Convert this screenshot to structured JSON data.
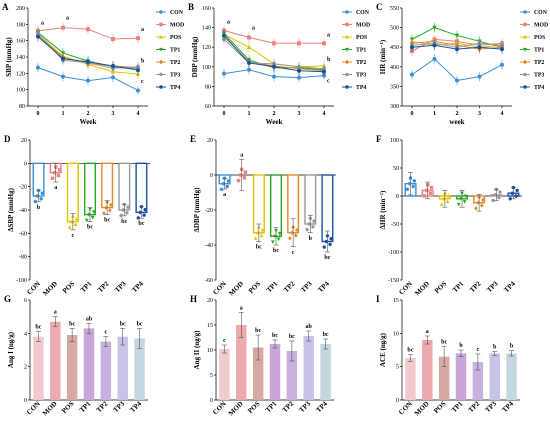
{
  "chart_data": [
    {
      "id": "A",
      "type": "line",
      "panel_label": "A",
      "ylabel": "SBP (mmHg)",
      "xlabel": "Week",
      "ylim": [
        80,
        200
      ],
      "yticks": [
        80,
        100,
        120,
        140,
        160,
        180,
        200
      ],
      "x": [
        0,
        1,
        2,
        3,
        4
      ],
      "series": [
        {
          "name": "CON",
          "color": "#3a8fd9",
          "marker": "circle",
          "values": [
            127,
            116,
            111,
            115,
            99
          ]
        },
        {
          "name": "MOD",
          "color": "#f08080",
          "marker": "square",
          "values": [
            172,
            176,
            174,
            162,
            163
          ]
        },
        {
          "name": "POS",
          "color": "#e5c200",
          "marker": "triangle",
          "values": [
            168,
            141,
            131,
            122,
            119
          ]
        },
        {
          "name": "TP1",
          "color": "#22aa22",
          "marker": "triangle-down",
          "values": [
            170,
            145,
            135,
            128,
            126
          ]
        },
        {
          "name": "TP2",
          "color": "#e08a2c",
          "marker": "diamond",
          "values": [
            166,
            140,
            132,
            129,
            127
          ]
        },
        {
          "name": "TP3",
          "color": "#9a9a9a",
          "marker": "circle",
          "values": [
            169,
            136,
            133,
            126,
            128
          ]
        },
        {
          "name": "TP4",
          "color": "#1a4fa0",
          "marker": "circle",
          "values": [
            165,
            138,
            134,
            129,
            124
          ]
        }
      ],
      "annotations": [
        {
          "x": 0,
          "y": 180,
          "text": "a"
        },
        {
          "x": 1,
          "y": 186,
          "text": "a"
        },
        {
          "x": 4,
          "y": 172,
          "text": "a"
        },
        {
          "x": 4,
          "y": 133,
          "text": "b"
        },
        {
          "x": 4,
          "y": 108,
          "text": "c"
        }
      ]
    },
    {
      "id": "B",
      "type": "line",
      "panel_label": "B",
      "ylabel": "DBP (mmHg)",
      "xlabel": "Week",
      "ylim": [
        60,
        160
      ],
      "yticks": [
        60,
        80,
        100,
        120,
        140,
        160
      ],
      "x": [
        0,
        1,
        2,
        3,
        4
      ],
      "series": [
        {
          "name": "CON",
          "color": "#3a8fd9",
          "marker": "circle",
          "values": [
            93,
            97,
            90,
            89,
            91
          ]
        },
        {
          "name": "MOD",
          "color": "#f08080",
          "marker": "square",
          "values": [
            137,
            130,
            124,
            124,
            124
          ]
        },
        {
          "name": "POS",
          "color": "#e5c200",
          "marker": "triangle",
          "values": [
            133,
            120,
            103,
            100,
            101
          ]
        },
        {
          "name": "TP1",
          "color": "#22aa22",
          "marker": "triangle-down",
          "values": [
            134,
            107,
            99,
            99,
            97
          ]
        },
        {
          "name": "TP2",
          "color": "#e08a2c",
          "marker": "diamond",
          "values": [
            131,
            105,
            101,
            98,
            96
          ]
        },
        {
          "name": "TP3",
          "color": "#9a9a9a",
          "marker": "circle",
          "values": [
            128,
            104,
            103,
            100,
            98
          ]
        },
        {
          "name": "TP4",
          "color": "#1a4fa0",
          "marker": "circle",
          "values": [
            132,
            104,
            100,
            96,
            95
          ]
        }
      ],
      "annotations": [
        {
          "x": 0,
          "y": 144,
          "text": "a"
        },
        {
          "x": 1,
          "y": 138,
          "text": "a"
        },
        {
          "x": 4,
          "y": 131,
          "text": "a"
        },
        {
          "x": 4,
          "y": 106,
          "text": "b"
        },
        {
          "x": 4,
          "y": 84,
          "text": "c"
        }
      ]
    },
    {
      "id": "C",
      "type": "line",
      "panel_label": "C",
      "ylabel": "HR (min⁻¹)",
      "xlabel": "week",
      "ylim": [
        300,
        550
      ],
      "yticks": [
        300,
        350,
        400,
        450,
        500,
        550
      ],
      "x": [
        0,
        1,
        2,
        3,
        4
      ],
      "series": [
        {
          "name": "CON",
          "color": "#3a8fd9",
          "marker": "circle",
          "values": [
            380,
            420,
            365,
            375,
            405
          ]
        },
        {
          "name": "MOD",
          "color": "#f08080",
          "marker": "square",
          "values": [
            440,
            470,
            465,
            455,
            460
          ]
        },
        {
          "name": "POS",
          "color": "#e5c200",
          "marker": "triangle",
          "values": [
            465,
            455,
            460,
            450,
            455
          ]
        },
        {
          "name": "TP1",
          "color": "#22aa22",
          "marker": "triangle-down",
          "values": [
            470,
            500,
            480,
            465,
            450
          ]
        },
        {
          "name": "TP2",
          "color": "#e08a2c",
          "marker": "diamond",
          "values": [
            460,
            465,
            455,
            445,
            450
          ]
        },
        {
          "name": "TP3",
          "color": "#9a9a9a",
          "marker": "circle",
          "values": [
            455,
            460,
            450,
            460,
            455
          ]
        },
        {
          "name": "TP4",
          "color": "#1a4fa0",
          "marker": "circle",
          "values": [
            450,
            455,
            445,
            450,
            445
          ]
        }
      ],
      "annotations": []
    },
    {
      "id": "D",
      "type": "bar",
      "panel_label": "D",
      "ylabel": "ΔSBP (mmHg)",
      "ylim": [
        -100,
        20
      ],
      "yticks": [
        -100,
        -80,
        -60,
        -40,
        -20,
        0,
        20
      ],
      "categories": [
        "CON",
        "MOD",
        "POS",
        "TP1",
        "TP2",
        "TP3",
        "TP4"
      ],
      "colors": [
        "#3a8fd9",
        "#f08080",
        "#e5c200",
        "#22aa22",
        "#e08a2c",
        "#9a9a9a",
        "#1a4fa0"
      ],
      "values": [
        -28,
        -8,
        -50,
        -44,
        -38,
        -40,
        -42
      ],
      "errors": [
        5,
        8,
        7,
        6,
        6,
        5,
        5
      ],
      "labels": [
        "b",
        "a",
        "c",
        "bc",
        "bc",
        "bc",
        "bc"
      ]
    },
    {
      "id": "E",
      "type": "bar",
      "panel_label": "E",
      "ylabel": "ΔDBP (mmHg)",
      "ylim": [
        -60,
        20
      ],
      "yticks": [
        -60,
        -40,
        -20,
        0,
        20
      ],
      "categories": [
        "CON",
        "MOD",
        "POS",
        "TP1",
        "TP2",
        "TP3",
        "TP4"
      ],
      "colors": [
        "#3a8fd9",
        "#f08080",
        "#e5c200",
        "#22aa22",
        "#e08a2c",
        "#9a9a9a",
        "#1a4fa0"
      ],
      "values": [
        -5,
        0,
        -33,
        -35,
        -33,
        -28,
        -38
      ],
      "errors": [
        3,
        9,
        5,
        5,
        8,
        5,
        6
      ],
      "labels": [
        "a",
        "a",
        "bc",
        "bc",
        "c",
        "b",
        "bc"
      ]
    },
    {
      "id": "F",
      "type": "bar",
      "panel_label": "F",
      "ylabel": "ΔHR (min⁻¹)",
      "ylim": [
        -150,
        100
      ],
      "yticks": [
        -150,
        -100,
        -50,
        0,
        50,
        100
      ],
      "categories": [
        "CON",
        "MOD",
        "POS",
        "TP1",
        "TP2",
        "TP3",
        "TP4"
      ],
      "colors": [
        "#3a8fd9",
        "#f08080",
        "#e5c200",
        "#22aa22",
        "#e08a2c",
        "#9a9a9a",
        "#1a4fa0"
      ],
      "values": [
        22,
        10,
        -5,
        -5,
        -12,
        2,
        5
      ],
      "errors": [
        20,
        15,
        15,
        15,
        15,
        10,
        10
      ],
      "labels": []
    },
    {
      "id": "G",
      "type": "bar",
      "panel_label": "G",
      "ylabel": "Ang I (ng/g)",
      "ylim": [
        0,
        6
      ],
      "yticks": [
        0,
        2,
        4,
        6
      ],
      "categories": [
        "CON",
        "MOD",
        "POS",
        "TP1",
        "TP2",
        "TP3",
        "TP4"
      ],
      "colors": [
        "#f2c9cc",
        "#eda9b0",
        "#d7a8a4",
        "#c9a6d9",
        "#c8b0df",
        "#c9c3e8",
        "#c4d6df"
      ],
      "values": [
        3.8,
        4.7,
        3.9,
        4.3,
        3.5,
        3.8,
        3.7
      ],
      "errors": [
        0.3,
        0.3,
        0.4,
        0.3,
        0.3,
        0.5,
        0.6
      ],
      "labels": [
        "bc",
        "a",
        "bc",
        "ab",
        "c",
        "bc",
        "bc"
      ]
    },
    {
      "id": "H",
      "type": "bar",
      "panel_label": "H",
      "ylabel": "Ang II (ng/g)",
      "ylim": [
        0,
        20
      ],
      "yticks": [
        0,
        5,
        10,
        15,
        20
      ],
      "categories": [
        "CON",
        "MOD",
        "POS",
        "TP1",
        "TP2",
        "TP3",
        "TP4"
      ],
      "colors": [
        "#f2c9cc",
        "#eda9b0",
        "#d7a8a4",
        "#c9a6d9",
        "#c8b0df",
        "#c9c3e8",
        "#c4d6df"
      ],
      "values": [
        10.2,
        15.0,
        10.5,
        11.2,
        9.8,
        12.8,
        11.2
      ],
      "errors": [
        0.8,
        2.5,
        2.5,
        0.8,
        2.0,
        1.0,
        1.0
      ],
      "labels": [
        "c",
        "a",
        "bc",
        "bc",
        "bc",
        "ab",
        "bc"
      ]
    },
    {
      "id": "I",
      "type": "bar",
      "panel_label": "I",
      "ylabel": "ACE (ng/g)",
      "ylim": [
        0,
        15
      ],
      "yticks": [
        0,
        5,
        10,
        15
      ],
      "categories": [
        "CON",
        "MOD",
        "POS",
        "TP1",
        "TP2",
        "TP3",
        "TP4"
      ],
      "colors": [
        "#f2c9cc",
        "#eda9b0",
        "#d7a8a4",
        "#c9a6d9",
        "#c8b0df",
        "#c9c3e8",
        "#c4d6df"
      ],
      "values": [
        6.3,
        9.0,
        6.5,
        7.0,
        5.7,
        7.0,
        7.0
      ],
      "errors": [
        0.5,
        0.6,
        1.5,
        0.5,
        1.2,
        0.3,
        0.4
      ],
      "labels": [
        "bc",
        "a",
        "bc",
        "b",
        "c",
        "b",
        "b"
      ]
    }
  ]
}
